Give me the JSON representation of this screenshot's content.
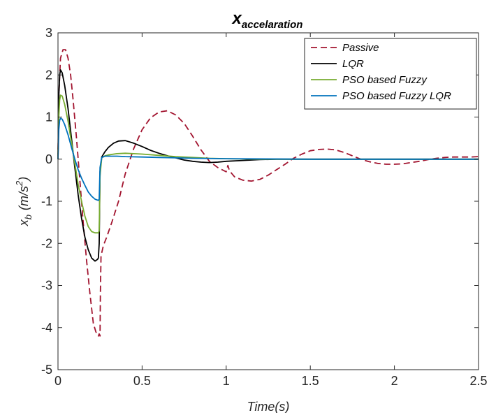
{
  "chart_data": {
    "type": "line",
    "title": "x",
    "title_subscript": "accelaration",
    "xlabel": "Time(s)",
    "ylabel": "x",
    "ylabel_subscript": "b",
    "ylabel_units": "(m/s",
    "ylabel_units_sup": "2",
    "ylabel_units_end": ")",
    "xlim": [
      0,
      2.5
    ],
    "ylim": [
      -5,
      3
    ],
    "xticks": [
      0,
      0.5,
      1,
      1.5,
      2,
      2.5
    ],
    "xtick_labels": [
      "0",
      "0.5",
      "1",
      "1.5",
      "2",
      "2.5"
    ],
    "yticks": [
      -5,
      -4,
      -3,
      -2,
      -1,
      0,
      1,
      2,
      3
    ],
    "ytick_labels": [
      "-5",
      "-4",
      "-3",
      "-2",
      "-1",
      "0",
      "1",
      "2",
      "3"
    ],
    "grid": false,
    "legend_position": "top-right",
    "series": [
      {
        "name": "Passive",
        "color": "#A2142F",
        "dash": "dashed",
        "x": [
          0,
          0.005,
          0.015,
          0.03,
          0.045,
          0.06,
          0.075,
          0.09,
          0.11,
          0.13,
          0.15,
          0.17,
          0.19,
          0.21,
          0.225,
          0.24,
          0.245,
          0.25,
          0.252,
          0.256,
          0.27,
          0.29,
          0.32,
          0.36,
          0.4,
          0.45,
          0.5,
          0.55,
          0.6,
          0.65,
          0.7,
          0.75,
          0.8,
          0.85,
          0.9,
          0.95,
          1.0,
          1.01,
          1.02,
          1.05,
          1.1,
          1.15,
          1.2,
          1.25,
          1.3,
          1.35,
          1.4,
          1.45,
          1.5,
          1.55,
          1.6,
          1.65,
          1.7,
          1.75,
          1.8,
          1.85,
          1.9,
          1.95,
          2.0,
          2.05,
          2.1,
          2.15,
          2.2,
          2.25,
          2.3,
          2.35,
          2.4,
          2.45,
          2.5
        ],
        "y": [
          0,
          1.5,
          2.4,
          2.6,
          2.6,
          2.4,
          2.0,
          1.4,
          0.5,
          -0.5,
          -1.5,
          -2.4,
          -3.2,
          -3.9,
          -4.1,
          -4.2,
          -4.15,
          -4.2,
          -3.2,
          -2.3,
          -2.05,
          -1.85,
          -1.5,
          -1.0,
          -0.35,
          0.25,
          0.7,
          0.98,
          1.12,
          1.15,
          1.05,
          0.85,
          0.55,
          0.22,
          -0.05,
          -0.2,
          -0.3,
          -0.15,
          -0.28,
          -0.42,
          -0.5,
          -0.52,
          -0.48,
          -0.38,
          -0.25,
          -0.12,
          0.02,
          0.12,
          0.2,
          0.23,
          0.24,
          0.22,
          0.16,
          0.08,
          0.0,
          -0.06,
          -0.1,
          -0.12,
          -0.12,
          -0.11,
          -0.08,
          -0.05,
          -0.01,
          0.02,
          0.04,
          0.05,
          0.05,
          0.05,
          0.06
        ]
      },
      {
        "name": "LQR",
        "color": "#000000",
        "dash": "solid",
        "x": [
          0,
          0.005,
          0.01,
          0.015,
          0.025,
          0.04,
          0.06,
          0.08,
          0.1,
          0.12,
          0.14,
          0.16,
          0.18,
          0.2,
          0.22,
          0.235,
          0.24,
          0.245,
          0.25,
          0.26,
          0.28,
          0.3,
          0.33,
          0.36,
          0.4,
          0.45,
          0.5,
          0.55,
          0.6,
          0.65,
          0.7,
          0.75,
          0.8,
          0.85,
          0.9,
          0.95,
          1.0,
          1.1,
          1.2,
          1.3,
          1.5,
          1.8,
          2.1,
          2.5
        ],
        "y": [
          0,
          1.5,
          2.0,
          2.12,
          2.05,
          1.75,
          1.2,
          0.5,
          -0.2,
          -0.85,
          -1.4,
          -1.85,
          -2.15,
          -2.35,
          -2.42,
          -2.38,
          -2.35,
          -2.0,
          -0.3,
          0.05,
          0.18,
          0.28,
          0.38,
          0.43,
          0.44,
          0.38,
          0.3,
          0.21,
          0.14,
          0.08,
          0.03,
          -0.02,
          -0.05,
          -0.07,
          -0.08,
          -0.07,
          -0.05,
          -0.03,
          -0.01,
          0.0,
          0.0,
          0.0,
          0.0,
          0.0
        ]
      },
      {
        "name": "PSO based Fuzzy",
        "color": "#77AC30",
        "dash": "solid",
        "x": [
          0,
          0.005,
          0.01,
          0.015,
          0.025,
          0.04,
          0.06,
          0.08,
          0.1,
          0.12,
          0.14,
          0.16,
          0.18,
          0.2,
          0.22,
          0.24,
          0.245,
          0.25,
          0.26,
          0.28,
          0.3,
          0.35,
          0.4,
          0.45,
          0.5,
          0.6,
          0.7,
          0.8,
          0.9,
          1.0,
          1.2,
          1.5,
          2.0,
          2.5
        ],
        "y": [
          0,
          1.0,
          1.4,
          1.52,
          1.5,
          1.3,
          0.9,
          0.4,
          -0.1,
          -0.6,
          -1.0,
          -1.35,
          -1.6,
          -1.72,
          -1.75,
          -1.75,
          -1.7,
          -0.4,
          0.03,
          0.08,
          0.1,
          0.13,
          0.14,
          0.13,
          0.12,
          0.09,
          0.06,
          0.04,
          0.02,
          0.01,
          0.0,
          0.0,
          0.0,
          0.0
        ]
      },
      {
        "name": "PSO based Fuzzy LQR",
        "color": "#0072BD",
        "dash": "solid",
        "x": [
          0,
          0.005,
          0.01,
          0.015,
          0.025,
          0.04,
          0.06,
          0.08,
          0.1,
          0.12,
          0.14,
          0.16,
          0.18,
          0.2,
          0.22,
          0.24,
          0.245,
          0.25,
          0.26,
          0.28,
          0.3,
          0.35,
          0.4,
          0.5,
          0.6,
          0.7,
          0.8,
          1.0,
          1.5,
          2.0,
          2.5
        ],
        "y": [
          0,
          0.7,
          0.92,
          0.97,
          0.95,
          0.82,
          0.58,
          0.28,
          0.0,
          -0.25,
          -0.45,
          -0.62,
          -0.78,
          -0.88,
          -0.95,
          -0.98,
          -0.95,
          -0.2,
          0.04,
          0.07,
          0.07,
          0.07,
          0.06,
          0.05,
          0.04,
          0.03,
          0.02,
          0.01,
          0.0,
          0.0,
          0.0
        ]
      }
    ]
  }
}
